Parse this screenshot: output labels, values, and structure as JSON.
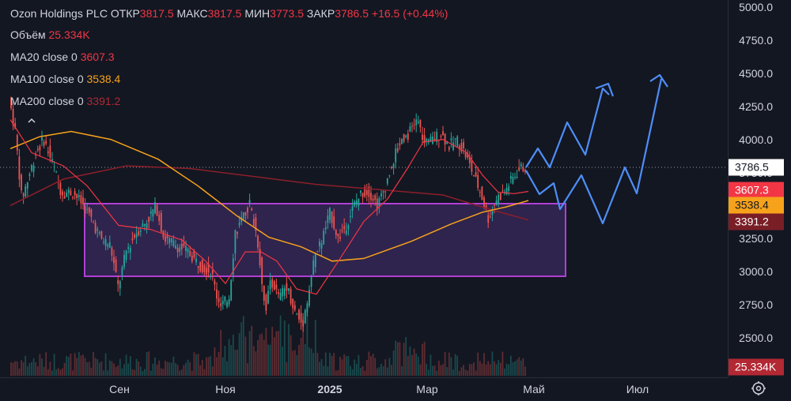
{
  "legend": {
    "title": "Ozon Holdings PLC",
    "open_label": "ОТКР",
    "open_value": "3817.5",
    "high_label": "МАКС",
    "high_value": "3817.5",
    "low_label": "МИН",
    "low_value": "3773.5",
    "close_label": "ЗАКР",
    "close_value": "3786.5",
    "change": "+16.5 (+0.44%)",
    "volume_label": "Объём",
    "volume_value": "25.334K",
    "ma20_label": "MA20 close 0",
    "ma20_value": "3607.3",
    "ma100_label": "MA100 close 0",
    "ma100_value": "3538.4",
    "ma200_label": "MA200 close 0",
    "ma200_value": "3391.2"
  },
  "price_axis": {
    "ticks": [
      "5000.0",
      "4750.0",
      "4500.0",
      "4250.0",
      "4000.0",
      "3750.0",
      "3500.0",
      "3250.0",
      "3000.0",
      "2750.0",
      "2500.0"
    ],
    "badges": [
      {
        "label": "3786.5",
        "color": "#ffffff",
        "text_color": "#131722"
      },
      {
        "label": "3607.3",
        "color": "#f23645",
        "text_color": "#ffffff"
      },
      {
        "label": "3538.4",
        "color": "#f7a21b",
        "text_color": "#131722"
      },
      {
        "label": "3391.2",
        "color": "#7a1e26",
        "text_color": "#ffffff"
      },
      {
        "label": "25.334K",
        "color": "#b22833",
        "text_color": "#ffffff"
      }
    ]
  },
  "time_axis": {
    "ticks": [
      "Сен",
      "Ноя",
      "2025",
      "Мар",
      "Май",
      "Июл"
    ]
  },
  "colors": {
    "up": "#26a69a",
    "down": "#ef5350",
    "ma20": "#f23645",
    "ma100": "#f7a21b",
    "ma200": "#8b1f2a",
    "forecast": "#4e8ef7",
    "zone_fill": "#3a2a5c",
    "zone_stroke": "#b03fd6"
  },
  "icons": {
    "collapse": "chevron-up-icon",
    "settings": "gear-icon"
  }
}
